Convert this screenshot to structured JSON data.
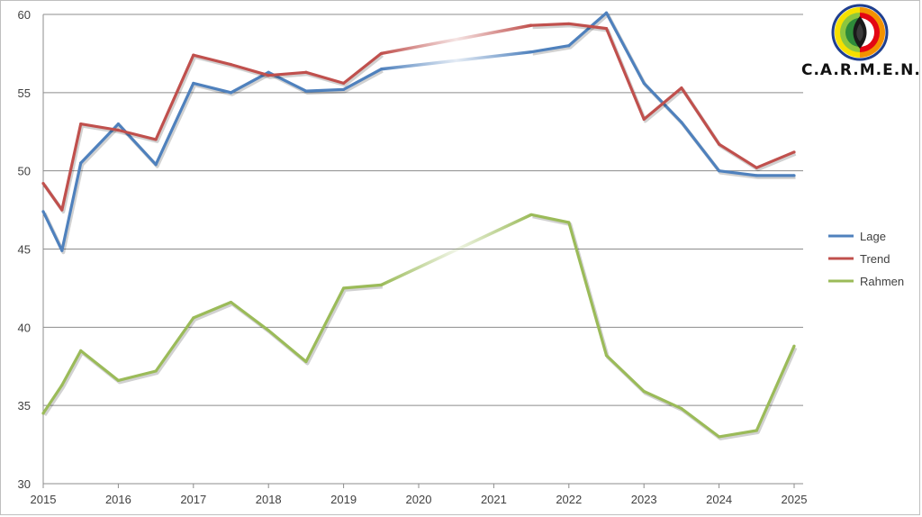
{
  "logo": {
    "text": "C.A.R.M.E.N."
  },
  "chart_data": {
    "type": "line",
    "xlim": [
      2015,
      2025
    ],
    "ylim": [
      30,
      60
    ],
    "x_ticks": [
      2015,
      2016,
      2017,
      2018,
      2019,
      2020,
      2021,
      2022,
      2023,
      2024,
      2025
    ],
    "y_ticks": [
      30,
      35,
      40,
      45,
      50,
      55,
      60
    ],
    "grid": {
      "horizontal": true,
      "vertical": false
    },
    "legend": "right",
    "series": [
      {
        "name": "Lage",
        "color": "#4f81bd",
        "points": [
          [
            2015.0,
            47.4
          ],
          [
            2015.25,
            44.9
          ],
          [
            2015.5,
            50.5
          ],
          [
            2016.0,
            53.0
          ],
          [
            2016.5,
            50.4
          ],
          [
            2017.0,
            55.6
          ],
          [
            2017.5,
            55.0
          ],
          [
            2018.0,
            56.3
          ],
          [
            2018.5,
            55.1
          ],
          [
            2019.0,
            55.2
          ],
          [
            2019.5,
            56.5
          ],
          [
            2021.5,
            57.6
          ],
          [
            2022.0,
            58.0
          ],
          [
            2022.5,
            60.1
          ],
          [
            2023.0,
            55.6
          ],
          [
            2023.5,
            53.1
          ],
          [
            2024.0,
            50.0
          ],
          [
            2024.5,
            49.7
          ],
          [
            2025.0,
            49.7
          ]
        ]
      },
      {
        "name": "Trend",
        "color": "#c0504d",
        "points": [
          [
            2015.0,
            49.2
          ],
          [
            2015.25,
            47.5
          ],
          [
            2015.5,
            53.0
          ],
          [
            2016.0,
            52.6
          ],
          [
            2016.5,
            52.0
          ],
          [
            2017.0,
            57.4
          ],
          [
            2017.5,
            56.8
          ],
          [
            2018.0,
            56.1
          ],
          [
            2018.5,
            56.3
          ],
          [
            2019.0,
            55.6
          ],
          [
            2019.5,
            57.5
          ],
          [
            2021.5,
            59.3
          ],
          [
            2022.0,
            59.4
          ],
          [
            2022.5,
            59.1
          ],
          [
            2023.0,
            53.3
          ],
          [
            2023.5,
            55.3
          ],
          [
            2024.0,
            51.7
          ],
          [
            2024.5,
            50.2
          ],
          [
            2025.0,
            51.2
          ]
        ]
      },
      {
        "name": "Rahmen",
        "color": "#9bbb59",
        "points": [
          [
            2015.0,
            34.5
          ],
          [
            2015.25,
            36.3
          ],
          [
            2015.5,
            38.5
          ],
          [
            2016.0,
            36.6
          ],
          [
            2016.5,
            37.2
          ],
          [
            2017.0,
            40.6
          ],
          [
            2017.5,
            41.6
          ],
          [
            2018.0,
            39.8
          ],
          [
            2018.5,
            37.8
          ],
          [
            2019.0,
            42.5
          ],
          [
            2019.5,
            42.7
          ],
          [
            2021.5,
            47.2
          ],
          [
            2022.0,
            46.7
          ],
          [
            2022.5,
            38.2
          ],
          [
            2023.0,
            35.9
          ],
          [
            2023.5,
            34.8
          ],
          [
            2024.0,
            33.0
          ],
          [
            2024.5,
            33.4
          ],
          [
            2025.0,
            38.8
          ]
        ]
      }
    ]
  }
}
